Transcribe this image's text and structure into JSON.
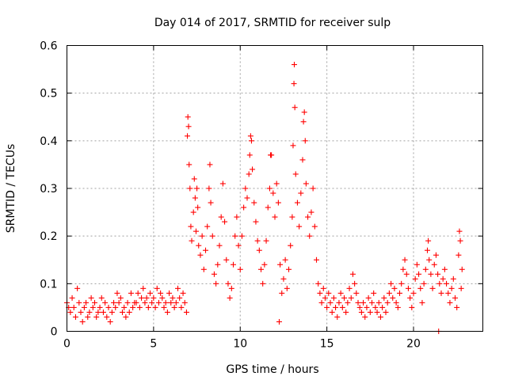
{
  "chart_data": {
    "type": "scatter",
    "title": "Day 014 of 2017, SRMTID for receiver sulp",
    "xlabel": "GPS time / hours",
    "ylabel": "SRMTID / TECUs",
    "xlim": [
      0,
      24
    ],
    "ylim": [
      0,
      0.6
    ],
    "xticks": [
      0,
      5,
      10,
      15,
      20
    ],
    "yticks": [
      0,
      0.1,
      0.2,
      0.3,
      0.4,
      0.5,
      0.6
    ],
    "xtick_labels": [
      "0",
      "5",
      "10",
      "15",
      "20"
    ],
    "ytick_labels": [
      "0",
      "0.1",
      "0.2",
      "0.3",
      "0.4",
      "0.5",
      "0.6"
    ],
    "grid": true,
    "marker": "+",
    "color": "#ff0000",
    "series": [
      {
        "name": "SRMTID",
        "points": [
          [
            0.0,
            0.06
          ],
          [
            0.1,
            0.05
          ],
          [
            0.2,
            0.04
          ],
          [
            0.3,
            0.07
          ],
          [
            0.4,
            0.05
          ],
          [
            0.5,
            0.03
          ],
          [
            0.6,
            0.09
          ],
          [
            0.7,
            0.06
          ],
          [
            0.8,
            0.04
          ],
          [
            0.9,
            0.02
          ],
          [
            1.0,
            0.05
          ],
          [
            1.1,
            0.06
          ],
          [
            1.2,
            0.03
          ],
          [
            1.3,
            0.04
          ],
          [
            1.4,
            0.07
          ],
          [
            1.5,
            0.05
          ],
          [
            1.6,
            0.06
          ],
          [
            1.7,
            0.03
          ],
          [
            1.8,
            0.04
          ],
          [
            1.9,
            0.05
          ],
          [
            2.0,
            0.07
          ],
          [
            2.1,
            0.04
          ],
          [
            2.2,
            0.06
          ],
          [
            2.3,
            0.03
          ],
          [
            2.4,
            0.05
          ],
          [
            2.5,
            0.02
          ],
          [
            2.6,
            0.04
          ],
          [
            2.7,
            0.06
          ],
          [
            2.8,
            0.05
          ],
          [
            2.9,
            0.08
          ],
          [
            3.0,
            0.06
          ],
          [
            3.1,
            0.07
          ],
          [
            3.2,
            0.04
          ],
          [
            3.3,
            0.05
          ],
          [
            3.4,
            0.03
          ],
          [
            3.5,
            0.06
          ],
          [
            3.6,
            0.04
          ],
          [
            3.7,
            0.08
          ],
          [
            3.8,
            0.05
          ],
          [
            3.9,
            0.06
          ],
          [
            4.0,
            0.06
          ],
          [
            4.1,
            0.08
          ],
          [
            4.2,
            0.05
          ],
          [
            4.3,
            0.07
          ],
          [
            4.4,
            0.09
          ],
          [
            4.5,
            0.06
          ],
          [
            4.6,
            0.07
          ],
          [
            4.7,
            0.05
          ],
          [
            4.8,
            0.08
          ],
          [
            4.9,
            0.06
          ],
          [
            5.0,
            0.07
          ],
          [
            5.1,
            0.05
          ],
          [
            5.2,
            0.09
          ],
          [
            5.3,
            0.06
          ],
          [
            5.4,
            0.08
          ],
          [
            5.5,
            0.07
          ],
          [
            5.6,
            0.05
          ],
          [
            5.7,
            0.06
          ],
          [
            5.8,
            0.04
          ],
          [
            5.9,
            0.08
          ],
          [
            6.0,
            0.06
          ],
          [
            6.1,
            0.07
          ],
          [
            6.2,
            0.05
          ],
          [
            6.3,
            0.06
          ],
          [
            6.4,
            0.09
          ],
          [
            6.5,
            0.07
          ],
          [
            6.6,
            0.05
          ],
          [
            6.7,
            0.08
          ],
          [
            6.8,
            0.06
          ],
          [
            6.9,
            0.04
          ],
          [
            6.95,
            0.41
          ],
          [
            6.98,
            0.45
          ],
          [
            7.02,
            0.43
          ],
          [
            7.05,
            0.35
          ],
          [
            7.1,
            0.3
          ],
          [
            7.15,
            0.22
          ],
          [
            7.2,
            0.19
          ],
          [
            7.3,
            0.25
          ],
          [
            7.35,
            0.32
          ],
          [
            7.4,
            0.28
          ],
          [
            7.45,
            0.21
          ],
          [
            7.5,
            0.3
          ],
          [
            7.55,
            0.26
          ],
          [
            7.6,
            0.18
          ],
          [
            7.7,
            0.16
          ],
          [
            7.8,
            0.2
          ],
          [
            7.9,
            0.13
          ],
          [
            8.0,
            0.17
          ],
          [
            8.1,
            0.22
          ],
          [
            8.2,
            0.3
          ],
          [
            8.25,
            0.35
          ],
          [
            8.3,
            0.27
          ],
          [
            8.4,
            0.2
          ],
          [
            8.5,
            0.12
          ],
          [
            8.6,
            0.1
          ],
          [
            8.7,
            0.14
          ],
          [
            8.8,
            0.18
          ],
          [
            8.9,
            0.24
          ],
          [
            9.0,
            0.31
          ],
          [
            9.1,
            0.23
          ],
          [
            9.2,
            0.15
          ],
          [
            9.3,
            0.1
          ],
          [
            9.4,
            0.07
          ],
          [
            9.5,
            0.09
          ],
          [
            9.6,
            0.14
          ],
          [
            9.7,
            0.2
          ],
          [
            9.8,
            0.24
          ],
          [
            9.9,
            0.18
          ],
          [
            10.0,
            0.13
          ],
          [
            10.1,
            0.2
          ],
          [
            10.2,
            0.26
          ],
          [
            10.3,
            0.3
          ],
          [
            10.4,
            0.28
          ],
          [
            10.5,
            0.33
          ],
          [
            10.55,
            0.37
          ],
          [
            10.6,
            0.41
          ],
          [
            10.65,
            0.4
          ],
          [
            10.7,
            0.34
          ],
          [
            10.8,
            0.27
          ],
          [
            10.9,
            0.23
          ],
          [
            11.0,
            0.19
          ],
          [
            11.1,
            0.17
          ],
          [
            11.2,
            0.13
          ],
          [
            11.3,
            0.1
          ],
          [
            11.4,
            0.14
          ],
          [
            11.5,
            0.19
          ],
          [
            11.6,
            0.26
          ],
          [
            11.7,
            0.3
          ],
          [
            11.75,
            0.37
          ],
          [
            11.8,
            0.37
          ],
          [
            11.9,
            0.29
          ],
          [
            12.0,
            0.24
          ],
          [
            12.1,
            0.31
          ],
          [
            12.2,
            0.27
          ],
          [
            12.25,
            0.02
          ],
          [
            12.3,
            0.14
          ],
          [
            12.4,
            0.08
          ],
          [
            12.5,
            0.11
          ],
          [
            12.6,
            0.15
          ],
          [
            12.7,
            0.09
          ],
          [
            12.8,
            0.13
          ],
          [
            12.9,
            0.18
          ],
          [
            13.0,
            0.24
          ],
          [
            13.05,
            0.39
          ],
          [
            13.1,
            0.52
          ],
          [
            13.12,
            0.56
          ],
          [
            13.15,
            0.47
          ],
          [
            13.2,
            0.33
          ],
          [
            13.3,
            0.27
          ],
          [
            13.4,
            0.22
          ],
          [
            13.5,
            0.29
          ],
          [
            13.6,
            0.36
          ],
          [
            13.65,
            0.44
          ],
          [
            13.7,
            0.46
          ],
          [
            13.75,
            0.4
          ],
          [
            13.8,
            0.31
          ],
          [
            13.9,
            0.24
          ],
          [
            14.0,
            0.2
          ],
          [
            14.1,
            0.25
          ],
          [
            14.2,
            0.3
          ],
          [
            14.3,
            0.22
          ],
          [
            14.4,
            0.15
          ],
          [
            14.5,
            0.1
          ],
          [
            14.6,
            0.08
          ],
          [
            14.7,
            0.06
          ],
          [
            14.8,
            0.09
          ],
          [
            14.9,
            0.07
          ],
          [
            15.0,
            0.05
          ],
          [
            15.1,
            0.08
          ],
          [
            15.2,
            0.06
          ],
          [
            15.3,
            0.04
          ],
          [
            15.4,
            0.07
          ],
          [
            15.5,
            0.05
          ],
          [
            15.6,
            0.03
          ],
          [
            15.7,
            0.06
          ],
          [
            15.8,
            0.08
          ],
          [
            15.9,
            0.05
          ],
          [
            16.0,
            0.07
          ],
          [
            16.1,
            0.04
          ],
          [
            16.2,
            0.06
          ],
          [
            16.3,
            0.09
          ],
          [
            16.4,
            0.07
          ],
          [
            16.5,
            0.12
          ],
          [
            16.6,
            0.1
          ],
          [
            16.7,
            0.08
          ],
          [
            16.8,
            0.06
          ],
          [
            16.9,
            0.05
          ],
          [
            17.0,
            0.04
          ],
          [
            17.1,
            0.06
          ],
          [
            17.2,
            0.03
          ],
          [
            17.3,
            0.05
          ],
          [
            17.4,
            0.07
          ],
          [
            17.5,
            0.04
          ],
          [
            17.6,
            0.06
          ],
          [
            17.7,
            0.08
          ],
          [
            17.8,
            0.05
          ],
          [
            17.9,
            0.04
          ],
          [
            18.0,
            0.06
          ],
          [
            18.1,
            0.03
          ],
          [
            18.2,
            0.05
          ],
          [
            18.3,
            0.07
          ],
          [
            18.4,
            0.04
          ],
          [
            18.5,
            0.06
          ],
          [
            18.6,
            0.08
          ],
          [
            18.7,
            0.1
          ],
          [
            18.8,
            0.07
          ],
          [
            18.9,
            0.09
          ],
          [
            19.0,
            0.06
          ],
          [
            19.1,
            0.05
          ],
          [
            19.2,
            0.08
          ],
          [
            19.3,
            0.1
          ],
          [
            19.4,
            0.13
          ],
          [
            19.5,
            0.15
          ],
          [
            19.6,
            0.12
          ],
          [
            19.7,
            0.09
          ],
          [
            19.8,
            0.07
          ],
          [
            19.9,
            0.05
          ],
          [
            20.0,
            0.08
          ],
          [
            20.1,
            0.11
          ],
          [
            20.2,
            0.14
          ],
          [
            20.3,
            0.12
          ],
          [
            20.4,
            0.09
          ],
          [
            20.5,
            0.06
          ],
          [
            20.6,
            0.1
          ],
          [
            20.7,
            0.13
          ],
          [
            20.8,
            0.17
          ],
          [
            20.85,
            0.19
          ],
          [
            20.9,
            0.15
          ],
          [
            21.0,
            0.12
          ],
          [
            21.1,
            0.09
          ],
          [
            21.2,
            0.14
          ],
          [
            21.3,
            0.16
          ],
          [
            21.4,
            0.12
          ],
          [
            21.45,
            0.0
          ],
          [
            21.5,
            0.1
          ],
          [
            21.6,
            0.08
          ],
          [
            21.7,
            0.11
          ],
          [
            21.8,
            0.13
          ],
          [
            21.9,
            0.1
          ],
          [
            22.0,
            0.08
          ],
          [
            22.1,
            0.06
          ],
          [
            22.2,
            0.09
          ],
          [
            22.3,
            0.11
          ],
          [
            22.4,
            0.07
          ],
          [
            22.5,
            0.05
          ],
          [
            22.6,
            0.16
          ],
          [
            22.65,
            0.21
          ],
          [
            22.7,
            0.19
          ],
          [
            22.75,
            0.09
          ],
          [
            22.8,
            0.13
          ]
        ]
      }
    ]
  }
}
